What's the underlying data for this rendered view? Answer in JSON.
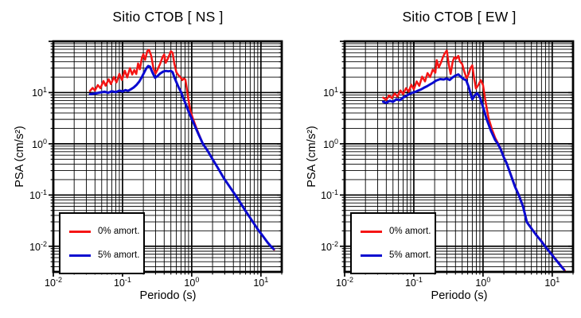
{
  "figure": {
    "background": "#ffffff",
    "grid_color": "#000000",
    "frame_color": "#000000",
    "text_color": "#000000"
  },
  "chart_data": [
    {
      "type": "line",
      "title": "Sitio CTOB [ NS ]",
      "xlabel": "Periodo (s)",
      "ylabel": "PSA (cm/s²)",
      "x_scale": "log",
      "y_scale": "log",
      "xlim": [
        0.01,
        20
      ],
      "ylim": [
        0.00316,
        100
      ],
      "x_tick_exponents": [
        -2,
        -1,
        0,
        1
      ],
      "y_tick_exponents": [
        1,
        0,
        -1,
        -2
      ],
      "grid": "major-and-minor-black",
      "legend_position": "lower-left",
      "series": [
        {
          "name": "0% amort.",
          "color": "#f51515",
          "width": 2.5,
          "points": [
            [
              0.034,
              10.8
            ],
            [
              0.037,
              12.3
            ],
            [
              0.04,
              11.0
            ],
            [
              0.044,
              14.0
            ],
            [
              0.048,
              12.2
            ],
            [
              0.053,
              16.8
            ],
            [
              0.057,
              13.6
            ],
            [
              0.063,
              18.2
            ],
            [
              0.068,
              14.6
            ],
            [
              0.075,
              20.2
            ],
            [
              0.082,
              15.8
            ],
            [
              0.09,
              23.2
            ],
            [
              0.098,
              17.6
            ],
            [
              0.108,
              26.8
            ],
            [
              0.117,
              19.8
            ],
            [
              0.128,
              30.0
            ],
            [
              0.138,
              22.5
            ],
            [
              0.148,
              27.5
            ],
            [
              0.158,
              23.0
            ],
            [
              0.168,
              37.0
            ],
            [
              0.178,
              28.5
            ],
            [
              0.19,
              47.0
            ],
            [
              0.2,
              56.0
            ],
            [
              0.212,
              43.5
            ],
            [
              0.228,
              65.0
            ],
            [
              0.242,
              68.0
            ],
            [
              0.26,
              52.0
            ],
            [
              0.28,
              30.0
            ],
            [
              0.3,
              23.5
            ],
            [
              0.32,
              28.0
            ],
            [
              0.35,
              36.5
            ],
            [
              0.38,
              50.0
            ],
            [
              0.4,
              55.5
            ],
            [
              0.42,
              38.0
            ],
            [
              0.45,
              45.0
            ],
            [
              0.47,
              52.0
            ],
            [
              0.5,
              64.0
            ],
            [
              0.53,
              60.0
            ],
            [
              0.56,
              37.0
            ],
            [
              0.6,
              25.0
            ],
            [
              0.64,
              22.0
            ],
            [
              0.69,
              19.8
            ],
            [
              0.73,
              17.5
            ],
            [
              0.77,
              18.8
            ],
            [
              0.81,
              17.9
            ],
            [
              0.85,
              12.0
            ],
            [
              0.9,
              7.0
            ],
            [
              0.97,
              4.2
            ],
            [
              1.05,
              3.0
            ],
            [
              1.2,
              1.85
            ],
            [
              1.45,
              1.0
            ],
            [
              1.7,
              0.73
            ],
            [
              2.0,
              0.5
            ],
            [
              2.4,
              0.335
            ],
            [
              2.9,
              0.215
            ],
            [
              3.5,
              0.148
            ],
            [
              4.2,
              0.103
            ],
            [
              5.0,
              0.072
            ],
            [
              6.0,
              0.049
            ],
            [
              7.5,
              0.031
            ],
            [
              9.0,
              0.0215
            ],
            [
              10.5,
              0.0163
            ],
            [
              12.5,
              0.0118
            ],
            [
              14.0,
              0.0099
            ],
            [
              15.5,
              0.0086
            ]
          ]
        },
        {
          "name": "5% amort.",
          "color": "#0a0ad0",
          "width": 3,
          "points": [
            [
              0.034,
              9.3
            ],
            [
              0.04,
              9.6
            ],
            [
              0.047,
              10.0
            ],
            [
              0.055,
              10.4
            ],
            [
              0.062,
              9.9
            ],
            [
              0.07,
              10.6
            ],
            [
              0.08,
              10.2
            ],
            [
              0.09,
              10.9
            ],
            [
              0.1,
              10.5
            ],
            [
              0.11,
              11.2
            ],
            [
              0.12,
              10.8
            ],
            [
              0.132,
              11.6
            ],
            [
              0.145,
              12.6
            ],
            [
              0.16,
              14.2
            ],
            [
              0.175,
              16.5
            ],
            [
              0.19,
              20.0
            ],
            [
              0.205,
              24.5
            ],
            [
              0.22,
              29.5
            ],
            [
              0.235,
              33.0
            ],
            [
              0.25,
              32.0
            ],
            [
              0.27,
              25.0
            ],
            [
              0.295,
              19.5
            ],
            [
              0.32,
              21.0
            ],
            [
              0.35,
              23.5
            ],
            [
              0.385,
              25.5
            ],
            [
              0.42,
              26.5
            ],
            [
              0.46,
              26.0
            ],
            [
              0.5,
              26.5
            ],
            [
              0.53,
              25.0
            ],
            [
              0.56,
              20.0
            ],
            [
              0.6,
              16.0
            ],
            [
              0.65,
              12.5
            ],
            [
              0.7,
              10.3
            ],
            [
              0.75,
              8.0
            ],
            [
              0.81,
              6.2
            ],
            [
              0.88,
              4.6
            ],
            [
              0.97,
              3.4
            ],
            [
              1.1,
              2.3
            ],
            [
              1.25,
              1.55
            ],
            [
              1.45,
              1.0
            ],
            [
              1.7,
              0.73
            ],
            [
              2.0,
              0.5
            ],
            [
              2.4,
              0.335
            ],
            [
              2.9,
              0.215
            ],
            [
              3.5,
              0.148
            ],
            [
              4.2,
              0.103
            ],
            [
              5.0,
              0.072
            ],
            [
              6.0,
              0.049
            ],
            [
              7.5,
              0.031
            ],
            [
              9.0,
              0.0215
            ],
            [
              10.5,
              0.0163
            ],
            [
              12.5,
              0.0118
            ],
            [
              14.0,
              0.0099
            ],
            [
              15.3,
              0.0088
            ]
          ]
        }
      ]
    },
    {
      "type": "line",
      "title": "Sitio CTOB [ EW ]",
      "xlabel": "Periodo (s)",
      "ylabel": "PSA (cm/s²)",
      "x_scale": "log",
      "y_scale": "log",
      "xlim": [
        0.01,
        20
      ],
      "ylim": [
        0.00316,
        100
      ],
      "x_tick_exponents": [
        -2,
        -1,
        0,
        1
      ],
      "y_tick_exponents": [
        1,
        0,
        -1,
        -2
      ],
      "grid": "major-and-minor-black",
      "legend_position": "lower-left",
      "series": [
        {
          "name": "0% amort.",
          "color": "#f51515",
          "width": 2.5,
          "points": [
            [
              0.036,
              8.0
            ],
            [
              0.04,
              7.2
            ],
            [
              0.044,
              8.8
            ],
            [
              0.048,
              7.8
            ],
            [
              0.053,
              9.6
            ],
            [
              0.058,
              8.4
            ],
            [
              0.064,
              11.0
            ],
            [
              0.07,
              9.4
            ],
            [
              0.077,
              12.2
            ],
            [
              0.084,
              10.4
            ],
            [
              0.092,
              14.2
            ],
            [
              0.1,
              11.6
            ],
            [
              0.11,
              16.5
            ],
            [
              0.12,
              13.5
            ],
            [
              0.132,
              20.5
            ],
            [
              0.145,
              16.5
            ],
            [
              0.158,
              24.0
            ],
            [
              0.172,
              20.0
            ],
            [
              0.188,
              28.0
            ],
            [
              0.205,
              24.5
            ],
            [
              0.214,
              43.0
            ],
            [
              0.23,
              31.0
            ],
            [
              0.248,
              39.0
            ],
            [
              0.262,
              48.0
            ],
            [
              0.278,
              57.0
            ],
            [
              0.3,
              66.0
            ],
            [
              0.32,
              35.0
            ],
            [
              0.34,
              23.0
            ],
            [
              0.365,
              40.0
            ],
            [
              0.385,
              49.0
            ],
            [
              0.41,
              46.0
            ],
            [
              0.44,
              52.0
            ],
            [
              0.465,
              40.0
            ],
            [
              0.5,
              36.0
            ],
            [
              0.54,
              25.0
            ],
            [
              0.58,
              19.0
            ],
            [
              0.62,
              23.0
            ],
            [
              0.66,
              30.0
            ],
            [
              0.7,
              34.0
            ],
            [
              0.74,
              20.0
            ],
            [
              0.79,
              12.0
            ],
            [
              0.85,
              13.8
            ],
            [
              0.93,
              17.5
            ],
            [
              1.0,
              14.0
            ],
            [
              1.08,
              7.0
            ],
            [
              1.2,
              3.2
            ],
            [
              1.35,
              1.9
            ],
            [
              1.5,
              1.3
            ],
            [
              1.65,
              1.02
            ],
            [
              1.8,
              0.8
            ],
            [
              2.0,
              0.55
            ],
            [
              2.2,
              0.42
            ],
            [
              2.5,
              0.26
            ],
            [
              2.9,
              0.148
            ],
            [
              3.3,
              0.1
            ],
            [
              3.8,
              0.06
            ],
            [
              4.3,
              0.03
            ],
            [
              5.0,
              0.0225
            ],
            [
              6.0,
              0.0163
            ],
            [
              7.0,
              0.0126
            ],
            [
              8.0,
              0.0098
            ],
            [
              9.5,
              0.0074
            ],
            [
              11.0,
              0.0058
            ],
            [
              12.5,
              0.0047
            ],
            [
              14.0,
              0.0039
            ],
            [
              15.2,
              0.0034
            ]
          ]
        },
        {
          "name": "5% amort.",
          "color": "#0a0ad0",
          "width": 3,
          "points": [
            [
              0.036,
              6.6
            ],
            [
              0.04,
              6.3
            ],
            [
              0.045,
              6.9
            ],
            [
              0.05,
              6.6
            ],
            [
              0.056,
              7.4
            ],
            [
              0.063,
              7.1
            ],
            [
              0.07,
              8.0
            ],
            [
              0.078,
              8.7
            ],
            [
              0.086,
              9.3
            ],
            [
              0.095,
              9.9
            ],
            [
              0.105,
              10.3
            ],
            [
              0.115,
              10.9
            ],
            [
              0.127,
              11.5
            ],
            [
              0.14,
              12.4
            ],
            [
              0.155,
              13.3
            ],
            [
              0.17,
              14.3
            ],
            [
              0.19,
              15.6
            ],
            [
              0.21,
              17.1
            ],
            [
              0.24,
              18.3
            ],
            [
              0.27,
              18.0
            ],
            [
              0.3,
              18.8
            ],
            [
              0.33,
              17.6
            ],
            [
              0.36,
              19.6
            ],
            [
              0.4,
              21.5
            ],
            [
              0.44,
              22.6
            ],
            [
              0.48,
              20.2
            ],
            [
              0.53,
              18.2
            ],
            [
              0.57,
              17.4
            ],
            [
              0.62,
              13.0
            ],
            [
              0.66,
              9.6
            ],
            [
              0.7,
              7.4
            ],
            [
              0.76,
              8.8
            ],
            [
              0.82,
              9.7
            ],
            [
              0.9,
              8.2
            ],
            [
              1.0,
              5.2
            ],
            [
              1.12,
              3.1
            ],
            [
              1.3,
              1.8
            ],
            [
              1.5,
              1.18
            ],
            [
              1.65,
              0.98
            ],
            [
              1.8,
              0.78
            ],
            [
              2.0,
              0.54
            ],
            [
              2.2,
              0.41
            ],
            [
              2.5,
              0.255
            ],
            [
              2.9,
              0.145
            ],
            [
              3.3,
              0.098
            ],
            [
              3.8,
              0.059
            ],
            [
              4.3,
              0.0295
            ],
            [
              5.0,
              0.0222
            ],
            [
              6.0,
              0.016
            ],
            [
              7.0,
              0.0124
            ],
            [
              8.0,
              0.0097
            ],
            [
              9.5,
              0.0073
            ],
            [
              11.0,
              0.0057
            ],
            [
              12.5,
              0.0046
            ],
            [
              14.0,
              0.0038
            ],
            [
              14.8,
              0.0035
            ]
          ]
        }
      ]
    }
  ]
}
